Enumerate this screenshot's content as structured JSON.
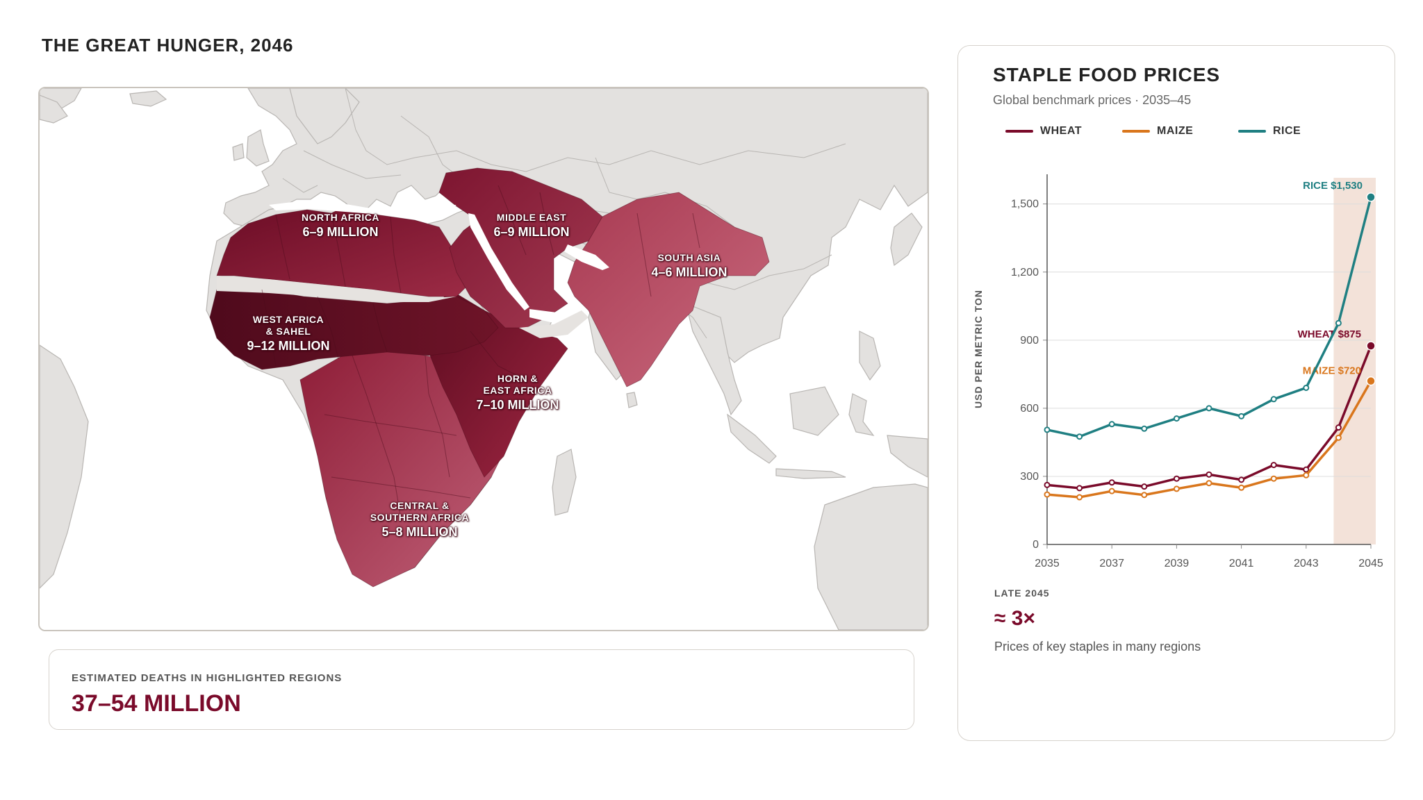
{
  "page": {
    "title": "THE GREAT HUNGER, 2046"
  },
  "colors": {
    "wheat": "#7a0a2a",
    "maize": "#d9761c",
    "rice": "#1f7f82",
    "land": "#e3e1df",
    "border": "#b8b5b2",
    "highlight_dark": "#6e0f27",
    "highlight_mid": "#8e1a36",
    "highlight_light": "#b03a53",
    "projection_band": "#f3e2d9"
  },
  "map": {
    "regions": [
      {
        "name": "NORTH AFRICA",
        "value": "6–9 MILLION"
      },
      {
        "name": "MIDDLE EAST",
        "value": "6–9 MILLION"
      },
      {
        "name": "SOUTH ASIA",
        "value": "4–6 MILLION"
      },
      {
        "name": "WEST AFRICA\n& SAHEL",
        "value": "9–12 MILLION"
      },
      {
        "name": "HORN &\nEAST AFRICA",
        "value": "7–10 MILLION"
      },
      {
        "name": "CENTRAL &\nSOUTHERN AFRICA",
        "value": "5–8 MILLION"
      }
    ]
  },
  "deaths": {
    "label": "ESTIMATED DEATHS IN HIGHLIGHTED REGIONS",
    "value": "37–54 MILLION"
  },
  "chart_panel": {
    "title": "STAPLE FOOD PRICES",
    "subtitle": "Global benchmark prices · 2035–45",
    "note": {
      "label": "LATE 2045",
      "value": "≈ 3×",
      "description": "Prices of key staples in many regions"
    }
  },
  "chart_data": {
    "type": "line",
    "title": "STAPLE FOOD PRICES",
    "subtitle": "Global benchmark prices · 2035–45",
    "ylabel": "USD PER METRIC TON",
    "xlabel": "",
    "x": [
      2035,
      2036,
      2037,
      2038,
      2039,
      2040,
      2041,
      2042,
      2043,
      2044,
      2045
    ],
    "x_ticks": [
      2035,
      2037,
      2039,
      2041,
      2043,
      2045
    ],
    "y_ticks": [
      0,
      300,
      600,
      900,
      1200,
      1500
    ],
    "ylim": [
      0,
      1600
    ],
    "grid": "horizontal",
    "legend_position": "top",
    "highlight_band": {
      "from": 2043.85,
      "to": 2045.15
    },
    "series": [
      {
        "name": "WHEAT",
        "color": "#7a0a2a",
        "values": [
          262,
          248,
          273,
          255,
          290,
          308,
          285,
          350,
          330,
          515,
          875
        ],
        "end_label": "WHEAT $875"
      },
      {
        "name": "MAIZE",
        "color": "#d9761c",
        "values": [
          220,
          208,
          235,
          218,
          245,
          270,
          250,
          290,
          305,
          470,
          720
        ],
        "end_label": "MAIZE $720"
      },
      {
        "name": "RICE",
        "color": "#1f7f82",
        "values": [
          505,
          475,
          530,
          510,
          555,
          600,
          565,
          640,
          690,
          975,
          1530
        ],
        "end_label": "RICE $1,530"
      }
    ]
  }
}
